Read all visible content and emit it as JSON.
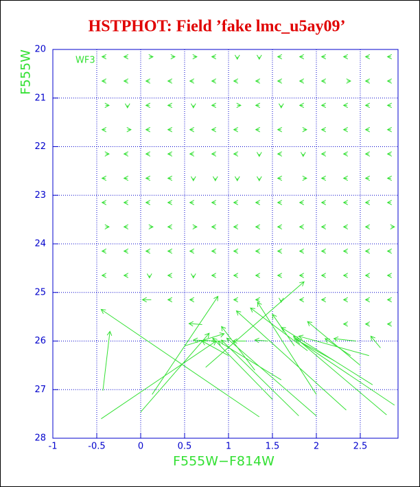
{
  "chart_data": {
    "type": "quiver",
    "title": "HSTPHOT: Field ’fake lmc_u5ay09’",
    "x_label": "F555W−F814W",
    "y_label": "F555W",
    "annotation": "WF3",
    "color": "#33e033",
    "axis_color": "#0000cc",
    "title_color": "#e00000",
    "xlim": [
      -1,
      2.93
    ],
    "ylim": [
      28,
      20
    ],
    "xticks": [
      -1,
      -0.5,
      0,
      0.5,
      1,
      1.5,
      2,
      2.5
    ],
    "yticks": [
      20,
      21,
      22,
      23,
      24,
      25,
      26,
      27,
      28
    ],
    "grid": true,
    "arrows": [
      [
        -0.4,
        20.15,
        -0.44,
        20.15
      ],
      [
        -0.15,
        20.15,
        -0.19,
        20.15
      ],
      [
        0.1,
        20.15,
        0.14,
        20.15
      ],
      [
        0.35,
        20.15,
        0.39,
        20.15
      ],
      [
        0.6,
        20.15,
        0.64,
        20.15
      ],
      [
        0.85,
        20.15,
        0.81,
        20.15
      ],
      [
        1.1,
        20.15,
        1.1,
        20.2
      ],
      [
        1.35,
        20.15,
        1.35,
        20.2
      ],
      [
        1.6,
        20.15,
        1.56,
        20.15
      ],
      [
        1.85,
        20.15,
        1.81,
        20.15
      ],
      [
        2.1,
        20.15,
        2.06,
        20.15
      ],
      [
        2.35,
        20.15,
        2.31,
        20.15
      ],
      [
        2.6,
        20.15,
        2.56,
        20.15
      ],
      [
        2.85,
        20.15,
        2.81,
        20.15
      ],
      [
        -0.4,
        20.65,
        -0.44,
        20.65
      ],
      [
        -0.15,
        20.65,
        -0.19,
        20.65
      ],
      [
        0.1,
        20.65,
        0.06,
        20.65
      ],
      [
        0.35,
        20.65,
        0.31,
        20.65
      ],
      [
        0.6,
        20.65,
        0.56,
        20.65
      ],
      [
        0.85,
        20.65,
        0.81,
        20.65
      ],
      [
        1.1,
        20.65,
        1.06,
        20.65
      ],
      [
        1.35,
        20.65,
        1.31,
        20.65
      ],
      [
        1.6,
        20.65,
        1.56,
        20.65
      ],
      [
        1.85,
        20.65,
        1.81,
        20.65
      ],
      [
        2.1,
        20.65,
        2.06,
        20.65
      ],
      [
        2.35,
        20.65,
        2.39,
        20.65
      ],
      [
        2.6,
        20.65,
        2.56,
        20.65
      ],
      [
        2.85,
        20.65,
        2.81,
        20.65
      ],
      [
        -0.4,
        21.15,
        -0.36,
        21.15
      ],
      [
        -0.15,
        21.15,
        -0.15,
        21.2
      ],
      [
        0.1,
        21.15,
        0.06,
        21.15
      ],
      [
        0.35,
        21.15,
        0.31,
        21.15
      ],
      [
        0.6,
        21.15,
        0.6,
        21.2
      ],
      [
        0.85,
        21.15,
        0.81,
        21.15
      ],
      [
        1.1,
        21.15,
        1.14,
        21.15
      ],
      [
        1.35,
        21.15,
        1.31,
        21.15
      ],
      [
        1.6,
        21.15,
        1.6,
        21.2
      ],
      [
        1.85,
        21.15,
        1.81,
        21.15
      ],
      [
        2.1,
        21.15,
        2.06,
        21.15
      ],
      [
        2.35,
        21.15,
        2.31,
        21.15
      ],
      [
        2.6,
        21.15,
        2.56,
        21.15
      ],
      [
        2.85,
        21.15,
        2.81,
        21.15
      ],
      [
        -0.4,
        21.65,
        -0.44,
        21.65
      ],
      [
        -0.15,
        21.65,
        -0.11,
        21.65
      ],
      [
        0.1,
        21.65,
        0.06,
        21.65
      ],
      [
        0.35,
        21.65,
        0.31,
        21.65
      ],
      [
        0.6,
        21.65,
        0.56,
        21.65
      ],
      [
        0.85,
        21.65,
        0.81,
        21.65
      ],
      [
        1.1,
        21.65,
        1.06,
        21.65
      ],
      [
        1.35,
        21.65,
        1.31,
        21.65
      ],
      [
        1.6,
        21.65,
        1.56,
        21.65
      ],
      [
        1.85,
        21.65,
        1.89,
        21.65
      ],
      [
        2.1,
        21.65,
        2.06,
        21.65
      ],
      [
        2.35,
        21.65,
        2.31,
        21.65
      ],
      [
        2.6,
        21.65,
        2.56,
        21.65
      ],
      [
        2.85,
        21.65,
        2.81,
        21.65
      ],
      [
        -0.4,
        22.15,
        -0.36,
        22.15
      ],
      [
        -0.15,
        22.15,
        -0.19,
        22.15
      ],
      [
        0.1,
        22.15,
        0.06,
        22.15
      ],
      [
        0.35,
        22.15,
        0.31,
        22.15
      ],
      [
        0.6,
        22.15,
        0.56,
        22.15
      ],
      [
        0.85,
        22.15,
        0.81,
        22.15
      ],
      [
        1.1,
        22.15,
        1.06,
        22.15
      ],
      [
        1.35,
        22.15,
        1.35,
        22.2
      ],
      [
        1.6,
        22.15,
        1.56,
        22.15
      ],
      [
        1.85,
        22.15,
        1.85,
        22.2
      ],
      [
        2.1,
        22.15,
        2.06,
        22.15
      ],
      [
        2.35,
        22.15,
        2.31,
        22.15
      ],
      [
        2.6,
        22.15,
        2.56,
        22.15
      ],
      [
        2.85,
        22.15,
        2.81,
        22.15
      ],
      [
        -0.4,
        22.65,
        -0.44,
        22.65
      ],
      [
        -0.15,
        22.65,
        -0.19,
        22.65
      ],
      [
        0.1,
        22.65,
        0.06,
        22.65
      ],
      [
        0.35,
        22.65,
        0.31,
        22.65
      ],
      [
        0.6,
        22.65,
        0.6,
        22.7
      ],
      [
        0.85,
        22.65,
        0.85,
        22.7
      ],
      [
        1.1,
        22.65,
        1.1,
        22.7
      ],
      [
        1.35,
        22.65,
        1.35,
        22.7
      ],
      [
        1.6,
        22.65,
        1.56,
        22.65
      ],
      [
        1.85,
        22.65,
        1.89,
        22.65
      ],
      [
        2.1,
        22.65,
        2.06,
        22.65
      ],
      [
        2.35,
        22.65,
        2.31,
        22.65
      ],
      [
        2.6,
        22.65,
        2.56,
        22.65
      ],
      [
        2.85,
        22.65,
        2.81,
        22.65
      ],
      [
        -0.4,
        23.15,
        -0.44,
        23.15
      ],
      [
        -0.15,
        23.15,
        -0.19,
        23.15
      ],
      [
        0.1,
        23.15,
        0.06,
        23.15
      ],
      [
        0.35,
        23.15,
        0.31,
        23.15
      ],
      [
        0.6,
        23.15,
        0.56,
        23.15
      ],
      [
        0.85,
        23.15,
        0.81,
        23.15
      ],
      [
        1.1,
        23.15,
        1.06,
        23.15
      ],
      [
        1.35,
        23.15,
        1.31,
        23.15
      ],
      [
        1.6,
        23.15,
        1.56,
        23.15
      ],
      [
        1.85,
        23.15,
        1.81,
        23.15
      ],
      [
        2.1,
        23.15,
        2.06,
        23.15
      ],
      [
        2.35,
        23.15,
        2.31,
        23.15
      ],
      [
        2.6,
        23.15,
        2.56,
        23.15
      ],
      [
        2.85,
        23.15,
        2.81,
        23.15
      ],
      [
        -0.4,
        23.65,
        -0.36,
        23.65
      ],
      [
        -0.15,
        23.65,
        -0.19,
        23.65
      ],
      [
        0.1,
        23.65,
        0.14,
        23.65
      ],
      [
        0.35,
        23.65,
        0.31,
        23.65
      ],
      [
        0.6,
        23.65,
        0.64,
        23.65
      ],
      [
        0.85,
        23.65,
        0.81,
        23.65
      ],
      [
        1.1,
        23.65,
        1.06,
        23.65
      ],
      [
        1.35,
        23.65,
        1.31,
        23.65
      ],
      [
        1.6,
        23.65,
        1.56,
        23.65
      ],
      [
        1.85,
        23.65,
        1.81,
        23.65
      ],
      [
        2.1,
        23.65,
        2.06,
        23.65
      ],
      [
        2.35,
        23.65,
        2.31,
        23.65
      ],
      [
        2.6,
        23.65,
        2.56,
        23.65
      ],
      [
        2.85,
        23.65,
        2.89,
        23.65
      ],
      [
        -0.4,
        24.15,
        -0.44,
        24.15
      ],
      [
        -0.15,
        24.15,
        -0.19,
        24.15
      ],
      [
        0.1,
        24.15,
        0.06,
        24.15
      ],
      [
        0.35,
        24.15,
        0.31,
        24.15
      ],
      [
        0.6,
        24.15,
        0.56,
        24.15
      ],
      [
        0.85,
        24.15,
        0.81,
        24.15
      ],
      [
        1.1,
        24.15,
        1.06,
        24.15
      ],
      [
        1.35,
        24.15,
        1.31,
        24.15
      ],
      [
        1.6,
        24.15,
        1.56,
        24.15
      ],
      [
        1.85,
        24.15,
        1.81,
        24.15
      ],
      [
        2.1,
        24.15,
        2.06,
        24.15
      ],
      [
        2.35,
        24.15,
        2.31,
        24.15
      ],
      [
        2.6,
        24.15,
        2.56,
        24.15
      ],
      [
        2.85,
        24.15,
        2.81,
        24.15
      ],
      [
        -0.4,
        24.65,
        -0.44,
        24.65
      ],
      [
        -0.15,
        24.65,
        -0.19,
        24.65
      ],
      [
        0.1,
        24.65,
        0.1,
        24.7
      ],
      [
        0.35,
        24.65,
        0.31,
        24.65
      ],
      [
        0.6,
        24.65,
        0.6,
        24.7
      ],
      [
        0.85,
        24.65,
        0.81,
        24.65
      ],
      [
        1.1,
        24.65,
        1.06,
        24.65
      ],
      [
        1.35,
        24.65,
        1.31,
        24.65
      ],
      [
        1.6,
        24.65,
        1.56,
        24.65
      ],
      [
        1.85,
        24.65,
        1.81,
        24.65
      ],
      [
        2.1,
        24.65,
        2.06,
        24.65
      ],
      [
        2.35,
        24.65,
        2.31,
        24.65
      ],
      [
        2.6,
        24.65,
        2.56,
        24.65
      ],
      [
        2.85,
        24.65,
        2.81,
        24.65
      ],
      [
        0.12,
        25.15,
        0.02,
        25.15
      ],
      [
        0.35,
        25.15,
        0.31,
        25.15
      ],
      [
        0.6,
        25.15,
        0.56,
        25.15
      ],
      [
        1.1,
        25.15,
        1.06,
        25.15
      ],
      [
        1.35,
        25.15,
        1.31,
        25.15
      ],
      [
        1.6,
        25.15,
        1.6,
        25.2
      ],
      [
        1.85,
        25.15,
        1.81,
        25.15
      ],
      [
        2.1,
        25.15,
        2.06,
        25.15
      ],
      [
        2.35,
        25.15,
        2.31,
        25.15
      ],
      [
        2.6,
        25.15,
        2.56,
        25.15
      ],
      [
        2.85,
        25.15,
        2.81,
        25.15
      ],
      [
        2.35,
        25.65,
        2.31,
        25.65
      ],
      [
        2.6,
        25.65,
        2.56,
        25.65
      ],
      [
        2.85,
        25.65,
        2.81,
        25.65
      ],
      [
        -0.43,
        27.02,
        -0.35,
        25.8
      ],
      [
        -0.45,
        27.6,
        0.86,
        26.0
      ],
      [
        1.35,
        27.56,
        -0.45,
        25.35
      ],
      [
        0.0,
        27.46,
        0.78,
        25.84
      ],
      [
        0.13,
        27.1,
        0.88,
        25.08
      ],
      [
        0.74,
        26.54,
        1.86,
        24.78
      ],
      [
        2.89,
        27.32,
        1.76,
        25.95
      ],
      [
        2.8,
        27.52,
        1.74,
        25.9
      ],
      [
        2.64,
        26.9,
        1.6,
        25.72
      ],
      [
        2.0,
        27.54,
        0.98,
        25.94
      ],
      [
        2.34,
        27.42,
        1.09,
        25.38
      ],
      [
        1.8,
        27.54,
        0.92,
        25.98
      ],
      [
        2.0,
        27.1,
        1.33,
        25.2
      ],
      [
        2.73,
        26.14,
        2.62,
        25.9
      ],
      [
        2.5,
        26.5,
        1.9,
        25.6
      ],
      [
        2.39,
        26.3,
        2.1,
        25.95
      ],
      [
        1.5,
        27.2,
        0.82,
        25.94
      ],
      [
        1.0,
        26.3,
        0.7,
        26.0
      ],
      [
        0.9,
        26.0,
        0.6,
        25.98
      ],
      [
        1.3,
        26.6,
        0.92,
        25.7
      ],
      [
        1.6,
        26.8,
        0.88,
        26.0
      ],
      [
        2.6,
        26.3,
        1.8,
        25.9
      ],
      [
        2.45,
        26.0,
        2.2,
        25.95
      ],
      [
        0.7,
        25.66,
        0.55,
        25.64
      ],
      [
        1.75,
        26.1,
        1.5,
        25.45
      ],
      [
        1.9,
        26.2,
        1.25,
        25.32
      ],
      [
        0.5,
        26.1,
        0.95,
        25.85
      ],
      [
        1.2,
        26.0,
        1.05,
        26.0
      ],
      [
        1.45,
        26.0,
        1.3,
        25.98
      ],
      [
        2.2,
        26.4,
        1.78,
        25.98
      ]
    ]
  }
}
